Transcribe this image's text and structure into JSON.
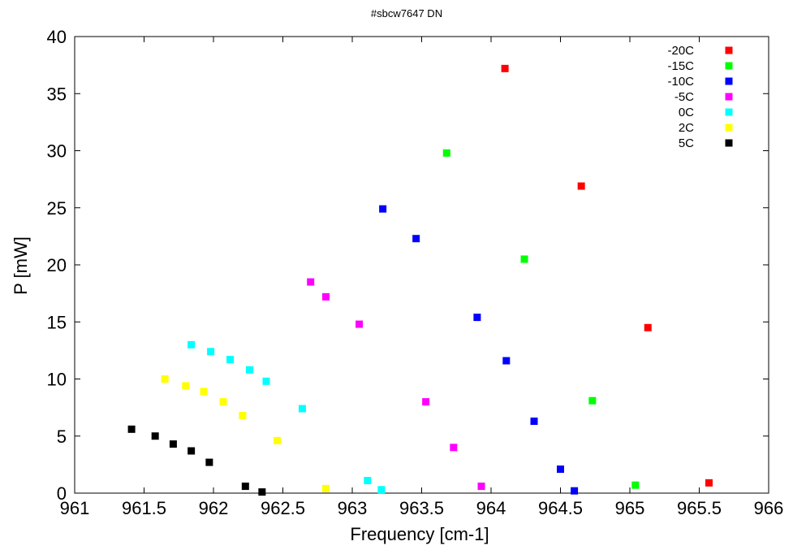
{
  "chart_data": {
    "type": "scatter",
    "title": "#sbcw7647 DN",
    "xlabel": "Frequency [cm-1]",
    "ylabel": "P [mW]",
    "xlim": [
      961,
      966
    ],
    "ylim": [
      0,
      40
    ],
    "xticks": [
      961,
      961.5,
      962,
      962.5,
      963,
      963.5,
      964,
      964.5,
      965,
      965.5,
      966
    ],
    "xtick_labels": [
      "961",
      "961.5",
      "962",
      "962.5",
      "963",
      "963.5",
      "964",
      "964.5",
      "965",
      "965.5",
      "966"
    ],
    "yticks": [
      0,
      5,
      10,
      15,
      20,
      25,
      30,
      35,
      40
    ],
    "ytick_labels": [
      "0",
      "5",
      "10",
      "15",
      "20",
      "25",
      "30",
      "35",
      "40"
    ],
    "grid": false,
    "legend_position": "top-right",
    "marker": "square",
    "series": [
      {
        "name": "-20C",
        "color": "#ff0000",
        "x": [
          964.1,
          964.65,
          965.13,
          965.57
        ],
        "y": [
          37.2,
          26.9,
          14.5,
          0.9
        ]
      },
      {
        "name": "-15C",
        "color": "#00ff00",
        "x": [
          963.68,
          964.24,
          964.73,
          965.04
        ],
        "y": [
          29.8,
          20.5,
          8.1,
          0.7
        ]
      },
      {
        "name": "-10C",
        "color": "#0000ff",
        "x": [
          963.22,
          963.46,
          963.9,
          964.11,
          964.31,
          964.5,
          964.6
        ],
        "y": [
          24.9,
          22.3,
          15.4,
          11.6,
          6.3,
          2.1,
          0.2
        ]
      },
      {
        "name": "-5C",
        "color": "#ff00ff",
        "x": [
          962.7,
          962.81,
          963.05,
          963.53,
          963.73,
          963.93
        ],
        "y": [
          18.5,
          17.2,
          14.8,
          8.0,
          4.0,
          0.6
        ]
      },
      {
        "name": "0C",
        "color": "#00ffff",
        "x": [
          961.84,
          961.98,
          962.12,
          962.26,
          962.38,
          962.64,
          963.11,
          963.21
        ],
        "y": [
          13.0,
          12.4,
          11.7,
          10.8,
          9.8,
          7.4,
          1.1,
          0.3
        ]
      },
      {
        "name": "2C",
        "color": "#ffff00",
        "x": [
          961.65,
          961.8,
          961.93,
          962.07,
          962.21,
          962.46,
          962.81
        ],
        "y": [
          10.0,
          9.4,
          8.9,
          8.0,
          6.8,
          4.6,
          0.4
        ]
      },
      {
        "name": "5C",
        "color": "#000000",
        "x": [
          961.41,
          961.58,
          961.71,
          961.84,
          961.97,
          962.23,
          962.35
        ],
        "y": [
          5.6,
          5.0,
          4.3,
          3.7,
          2.7,
          0.6,
          0.1
        ]
      }
    ]
  }
}
